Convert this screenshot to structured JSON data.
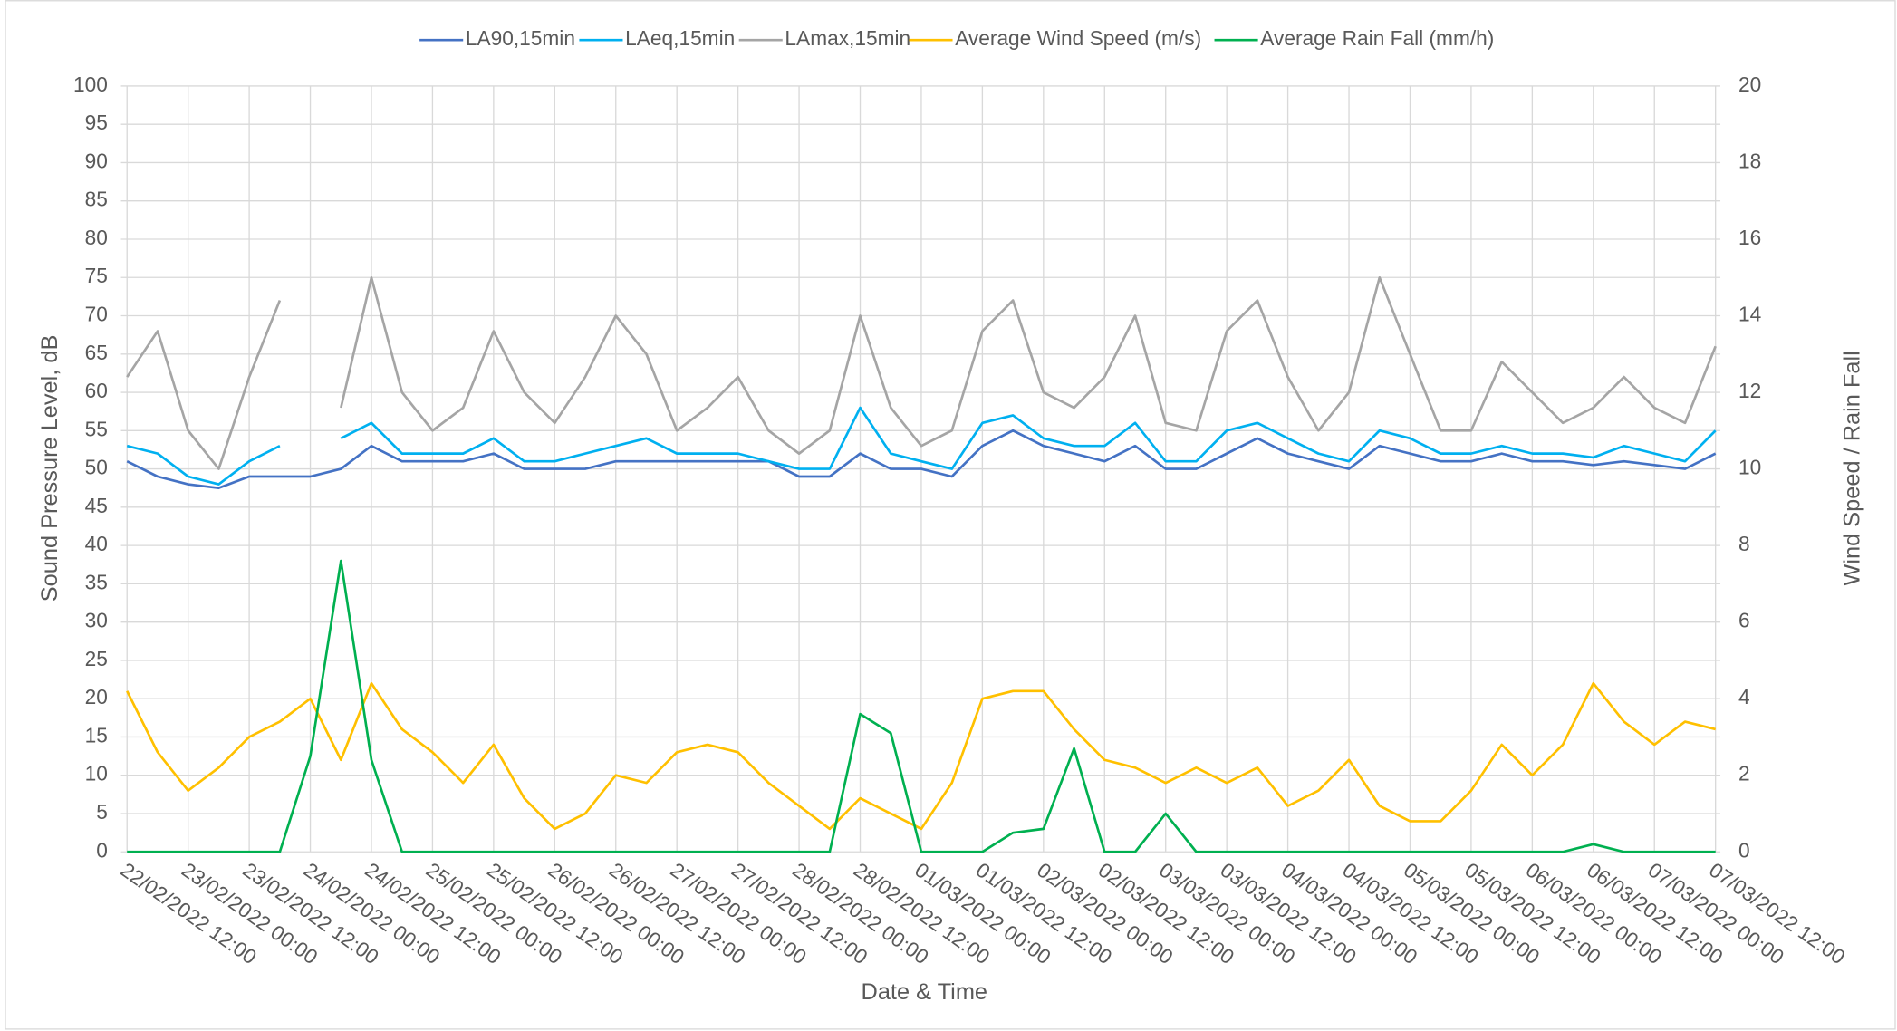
{
  "chart_data": {
    "type": "line",
    "x_label": "Date & Time",
    "y_label": "Sound Pressure Level, dB",
    "y2_label": "Wind Speed / Rain Fall",
    "x": [
      "22/02/2022 12:00",
      "22/02/2022 18:00",
      "23/02/2022 00:00",
      "23/02/2022 06:00",
      "23/02/2022 12:00",
      "23/02/2022 18:00",
      "24/02/2022 00:00",
      "24/02/2022 06:00",
      "24/02/2022 12:00",
      "24/02/2022 18:00",
      "25/02/2022 00:00",
      "25/02/2022 06:00",
      "25/02/2022 12:00",
      "25/02/2022 18:00",
      "26/02/2022 00:00",
      "26/02/2022 06:00",
      "26/02/2022 12:00",
      "26/02/2022 18:00",
      "27/02/2022 00:00",
      "27/02/2022 06:00",
      "27/02/2022 12:00",
      "27/02/2022 18:00",
      "28/02/2022 00:00",
      "28/02/2022 06:00",
      "28/02/2022 12:00",
      "28/02/2022 18:00",
      "01/03/2022 00:00",
      "01/03/2022 06:00",
      "01/03/2022 12:00",
      "01/03/2022 18:00",
      "02/03/2022 00:00",
      "02/03/2022 06:00",
      "02/03/2022 12:00",
      "02/03/2022 18:00",
      "03/03/2022 00:00",
      "03/03/2022 06:00",
      "03/03/2022 12:00",
      "03/03/2022 18:00",
      "04/03/2022 00:00",
      "04/03/2022 06:00",
      "04/03/2022 12:00",
      "04/03/2022 18:00",
      "05/03/2022 00:00",
      "05/03/2022 06:00",
      "05/03/2022 12:00",
      "05/03/2022 18:00",
      "06/03/2022 00:00",
      "06/03/2022 06:00",
      "06/03/2022 12:00",
      "06/03/2022 18:00",
      "07/03/2022 00:00",
      "07/03/2022 06:00",
      "07/03/2022 12:00"
    ],
    "xlim": [
      "22/02/2022 12:00",
      "07/03/2022 12:00"
    ],
    "xticks": [
      "22/02/2022 12:00",
      "23/02/2022 00:00",
      "23/02/2022 12:00",
      "24/02/2022 00:00",
      "24/02/2022 12:00",
      "25/02/2022 00:00",
      "25/02/2022 12:00",
      "26/02/2022 00:00",
      "26/02/2022 12:00",
      "27/02/2022 00:00",
      "27/02/2022 12:00",
      "28/02/2022 00:00",
      "28/02/2022 12:00",
      "01/03/2022 00:00",
      "01/03/2022 12:00",
      "02/03/2022 00:00",
      "02/03/2022 12:00",
      "03/03/2022 00:00",
      "03/03/2022 12:00",
      "04/03/2022 00:00",
      "04/03/2022 12:00",
      "05/03/2022 00:00",
      "05/03/2022 12:00",
      "06/03/2022 00:00",
      "06/03/2022 12:00",
      "07/03/2022 00:00",
      "07/03/2022 12:00"
    ],
    "ylim": [
      0,
      100
    ],
    "yticks": [
      0,
      5,
      10,
      15,
      20,
      25,
      30,
      35,
      40,
      45,
      50,
      55,
      60,
      65,
      70,
      75,
      80,
      85,
      90,
      95,
      100
    ],
    "y2lim": [
      0,
      20
    ],
    "y2ticks": [
      0,
      2,
      4,
      6,
      8,
      10,
      12,
      14,
      16,
      18,
      20
    ],
    "grid": true,
    "legend": "top",
    "series": [
      {
        "name": "LA90,15min",
        "color": "#4472c4",
        "values": [
          51,
          49,
          48,
          47.5,
          49,
          49,
          49,
          50,
          53,
          51,
          51,
          51,
          52,
          50,
          50,
          50,
          51,
          51,
          51,
          51,
          51,
          51,
          49,
          49,
          52,
          50,
          50,
          49,
          53,
          55,
          53,
          52,
          51,
          53,
          50,
          50,
          52,
          54,
          52,
          51,
          50,
          53,
          52,
          51,
          51,
          52,
          51,
          51,
          50.5,
          51,
          50.5,
          50,
          52
        ]
      },
      {
        "name": "LAeq,15min",
        "color": "#00b0f0",
        "values": [
          53,
          52,
          49,
          48,
          51,
          53,
          null,
          54,
          56,
          52,
          52,
          52,
          54,
          51,
          51,
          52,
          53,
          54,
          52,
          52,
          52,
          51,
          50,
          50,
          58,
          52,
          51,
          50,
          56,
          57,
          54,
          53,
          53,
          56,
          51,
          51,
          55,
          56,
          54,
          52,
          51,
          55,
          54,
          52,
          52,
          53,
          52,
          52,
          51.5,
          53,
          52,
          51,
          55
        ]
      },
      {
        "name": "LAmax,15min",
        "color": "#a5a5a5",
        "values": [
          62,
          68,
          55,
          50,
          62,
          72,
          null,
          58,
          75,
          60,
          55,
          58,
          68,
          60,
          56,
          62,
          70,
          65,
          55,
          58,
          62,
          55,
          52,
          55,
          70,
          58,
          53,
          55,
          68,
          72,
          60,
          58,
          62,
          70,
          56,
          55,
          68,
          72,
          62,
          55,
          60,
          75,
          65,
          55,
          55,
          64,
          60,
          56,
          58,
          62,
          58,
          56,
          66
        ]
      },
      {
        "name": "Average Wind Speed (m/s)",
        "color": "#ffc000",
        "axis": "y2",
        "values": [
          4.2,
          2.6,
          1.6,
          2.2,
          3,
          3.4,
          4,
          2.4,
          4.4,
          3.2,
          2.6,
          1.8,
          2.8,
          1.4,
          0.6,
          1,
          2,
          1.8,
          2.6,
          2.8,
          2.6,
          1.8,
          1.2,
          0.6,
          1.4,
          1,
          0.6,
          1.8,
          4,
          4.2,
          4.2,
          3.2,
          2.4,
          2.2,
          1.8,
          2.2,
          1.8,
          2.2,
          1.2,
          1.6,
          2.4,
          1.2,
          0.8,
          0.8,
          1.6,
          2.8,
          2,
          2.8,
          4.4,
          3.4,
          2.8,
          3.4,
          3.2
        ]
      },
      {
        "name": "Average Rain Fall (mm/h)",
        "color": "#00b050",
        "axis": "y2",
        "values": [
          0,
          0,
          0,
          0,
          0,
          0,
          2.5,
          7.6,
          2.4,
          0,
          0,
          0,
          0,
          0,
          0,
          0,
          0,
          0,
          0,
          0,
          0,
          0,
          0,
          0,
          3.6,
          3.1,
          0,
          0,
          0,
          0.5,
          0.6,
          2.7,
          0,
          0,
          1,
          0,
          0,
          0,
          0,
          0,
          0,
          0,
          0,
          0,
          0,
          0,
          0,
          0,
          0.2,
          0,
          0,
          0,
          0
        ]
      }
    ]
  }
}
